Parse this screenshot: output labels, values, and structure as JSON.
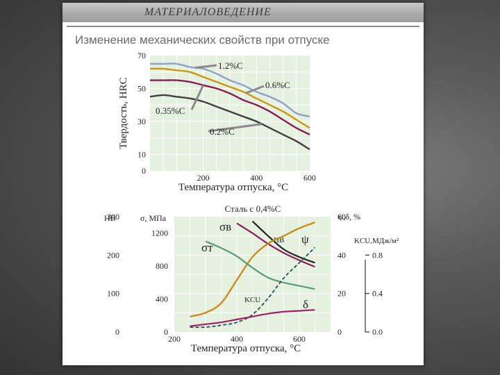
{
  "header": {
    "title": "МАТЕРИАЛОВЕДЕНИЕ"
  },
  "main_title": "Изменение механических свойств при отпуске",
  "colors": {
    "plot_bg": "#e4f1df",
    "grid": "#ffffff",
    "c12": "#8ea0cc",
    "c06": "#c9980e",
    "c035": "#8c1b52",
    "c02": "#3e3e3e",
    "sigma_v": "#8c1b52",
    "hb": "#222222",
    "psi": "#c98d18",
    "sigma_t": "#5a9a78",
    "kcu": "#1f4e5a",
    "delta": "#a42064"
  },
  "chart_data": [
    {
      "type": "line",
      "xlabel": "Температура отпуска, °C",
      "ylabel": "Твердость, HRC",
      "xlim": [
        0,
        600
      ],
      "ylim": [
        0,
        70
      ],
      "x_ticks": [
        "200",
        "400",
        "600"
      ],
      "y_ticks": [
        "0",
        "10",
        "30",
        "50",
        "70"
      ],
      "series": [
        {
          "name": "1.2%C",
          "x": [
            0,
            50,
            100,
            150,
            200,
            250,
            300,
            350,
            400,
            450,
            500,
            550,
            600
          ],
          "y": [
            65,
            65,
            65,
            63,
            62,
            59,
            55,
            52,
            48,
            45,
            41,
            35,
            33
          ]
        },
        {
          "name": "0.6%C",
          "x": [
            0,
            50,
            100,
            150,
            200,
            250,
            300,
            350,
            400,
            450,
            500,
            550,
            600
          ],
          "y": [
            62,
            62,
            61,
            60,
            57,
            54,
            51,
            48,
            44,
            40,
            36,
            31,
            26
          ]
        },
        {
          "name": "0.35%C",
          "x": [
            0,
            50,
            100,
            150,
            200,
            250,
            300,
            350,
            400,
            450,
            500,
            550,
            600
          ],
          "y": [
            55,
            55,
            55,
            54,
            52,
            50,
            47,
            43,
            40,
            36,
            31,
            26,
            22
          ]
        },
        {
          "name": "0.2%C",
          "x": [
            0,
            50,
            100,
            150,
            200,
            250,
            300,
            350,
            400,
            450,
            500,
            550,
            600
          ],
          "y": [
            45,
            46,
            45,
            44,
            42,
            39,
            36,
            33,
            30,
            26,
            22,
            18,
            13
          ]
        }
      ]
    },
    {
      "type": "line",
      "title": "Сталь с 0,4%С",
      "xlabel": "Температура отпуска, °C",
      "xlim": [
        200,
        700
      ],
      "x_ticks": [
        "200",
        "400",
        "600"
      ],
      "axes": {
        "hb": {
          "label": "HB",
          "range": [
            0,
            300
          ],
          "ticks": [
            "0",
            "100",
            "200",
            "300"
          ]
        },
        "sigma": {
          "label": "σ, МПа",
          "range": [
            0,
            1400
          ],
          "ticks": [
            "0",
            "400",
            "800",
            "1200"
          ]
        },
        "psi_delta": {
          "label": "ψ,δ, %",
          "range": [
            0,
            60
          ],
          "ticks": [
            "0",
            "20",
            "40",
            "60"
          ]
        },
        "kcu": {
          "label": "KCU,МДж/м²",
          "range": [
            0,
            1.2
          ],
          "ticks": [
            "0.0",
            "0.4",
            "0.8"
          ]
        }
      },
      "series": [
        {
          "name": "σв",
          "axis": "sigma",
          "x": [
            400,
            450,
            500,
            550,
            600,
            650
          ],
          "y": [
            1320,
            1200,
            1070,
            960,
            870,
            790
          ]
        },
        {
          "name": "HB",
          "axis": "hb",
          "x": [
            450,
            500,
            550,
            600,
            650
          ],
          "y": [
            288,
            250,
            215,
            195,
            180
          ]
        },
        {
          "name": "ψ",
          "axis": "psi_delta",
          "x": [
            250,
            300,
            350,
            400,
            450,
            500,
            550,
            600,
            650
          ],
          "y": [
            8,
            10,
            15,
            27,
            39,
            46,
            50,
            54,
            57
          ]
        },
        {
          "name": "σт",
          "axis": "sigma",
          "x": [
            300,
            350,
            400,
            450,
            500,
            550,
            600,
            650
          ],
          "y": [
            1100,
            1020,
            920,
            780,
            660,
            600,
            560,
            520
          ]
        },
        {
          "name": "KCU",
          "axis": "kcu",
          "x": [
            250,
            300,
            350,
            400,
            450,
            500,
            550,
            600,
            650
          ],
          "y": [
            0.05,
            0.05,
            0.07,
            0.1,
            0.18,
            0.35,
            0.56,
            0.72,
            0.88
          ]
        },
        {
          "name": "δ",
          "axis": "psi_delta",
          "x": [
            250,
            300,
            350,
            400,
            450,
            500,
            550,
            600,
            650
          ],
          "y": [
            3,
            4,
            5,
            6.5,
            8,
            9.5,
            10.5,
            11,
            11.5
          ]
        }
      ]
    }
  ]
}
